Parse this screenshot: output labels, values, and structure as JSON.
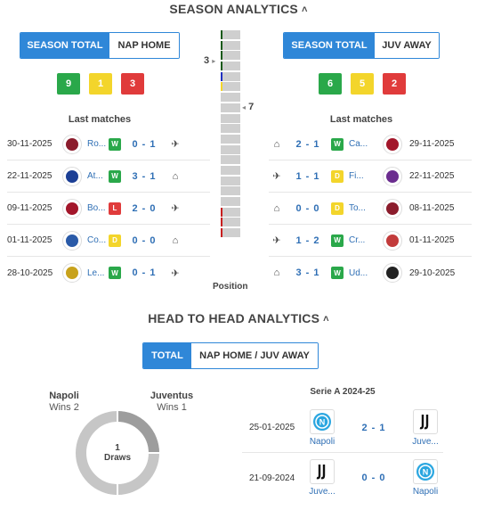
{
  "season": {
    "title": "SEASON ANALYTICS",
    "home": {
      "toggle": [
        "SEASON TOTAL",
        "NAP HOME"
      ],
      "counts": {
        "w": "9",
        "d": "1",
        "l": "3"
      },
      "last_label": "Last matches",
      "matches": [
        {
          "date": "30-11-2025",
          "team": "Ro...",
          "res": "W",
          "score": "0 - 1",
          "venue": "away",
          "color": "#8b1c2c"
        },
        {
          "date": "22-11-2025",
          "team": "At...",
          "res": "W",
          "score": "3 - 1",
          "venue": "home",
          "color": "#1c3f95"
        },
        {
          "date": "09-11-2025",
          "team": "Bo...",
          "res": "L",
          "score": "2 - 0",
          "venue": "away",
          "color": "#a3162a"
        },
        {
          "date": "01-11-2025",
          "team": "Co...",
          "res": "D",
          "score": "0 - 0",
          "venue": "home",
          "color": "#2a5aa8"
        },
        {
          "date": "28-10-2025",
          "team": "Le...",
          "res": "W",
          "score": "0 - 1",
          "venue": "away",
          "color": "#c8a21c"
        }
      ]
    },
    "away": {
      "toggle": [
        "SEASON TOTAL",
        "JUV AWAY"
      ],
      "counts": {
        "w": "6",
        "d": "5",
        "l": "2"
      },
      "last_label": "Last matches",
      "matches": [
        {
          "date": "29-11-2025",
          "team": "Ca...",
          "res": "W",
          "score": "2 - 1",
          "venue": "home",
          "color": "#a3162a"
        },
        {
          "date": "22-11-2025",
          "team": "Fi...",
          "res": "D",
          "score": "1 - 1",
          "venue": "away",
          "color": "#6b2d8f"
        },
        {
          "date": "08-11-2025",
          "team": "To...",
          "res": "D",
          "score": "0 - 0",
          "venue": "home",
          "color": "#8b1c2c"
        },
        {
          "date": "01-11-2025",
          "team": "Cr...",
          "res": "W",
          "score": "1 - 2",
          "venue": "away",
          "color": "#c23b3b"
        },
        {
          "date": "29-10-2025",
          "team": "Ud...",
          "res": "W",
          "score": "3 - 1",
          "venue": "home",
          "color": "#222222"
        }
      ]
    },
    "position": {
      "label": "Position",
      "home_pos": "3",
      "away_pos": "7"
    }
  },
  "h2h": {
    "title": "HEAD TO HEAD ANALYTICS",
    "toggle": [
      "TOTAL",
      "NAP HOME / JUV AWAY"
    ],
    "home_team": "Napoli",
    "home_wins": "Wins 2",
    "away_team": "Juventus",
    "away_wins": "Wins 1",
    "draws_count": "1",
    "draws_label": "Draws",
    "competition": "Serie A 2024-25",
    "matches": [
      {
        "date": "25-01-2025",
        "home": "Napoli",
        "score": "2 - 1",
        "away": "Juve..."
      },
      {
        "date": "21-09-2024",
        "home": "Juve...",
        "score": "0 - 0",
        "away": "Napoli"
      }
    ]
  }
}
